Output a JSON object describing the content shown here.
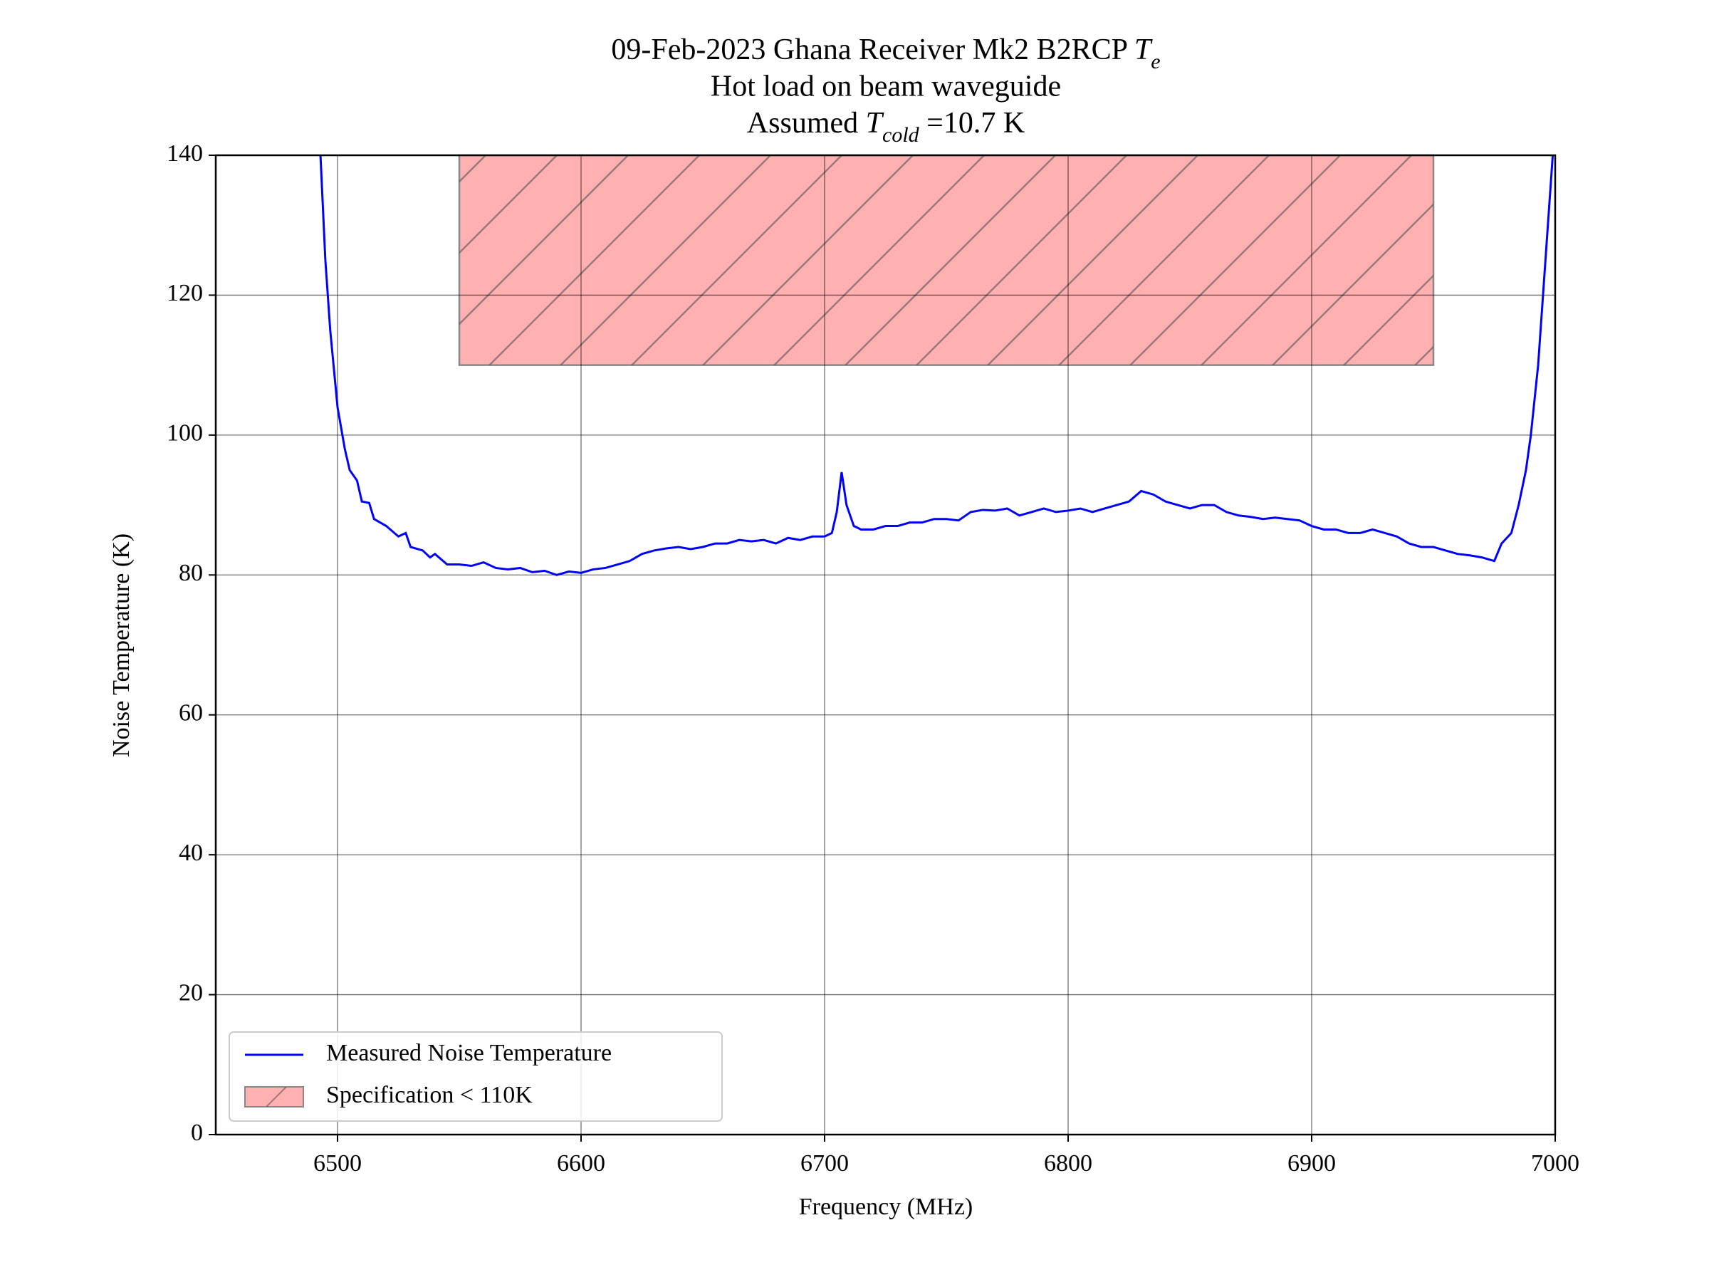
{
  "chart_data": {
    "type": "line",
    "title": [
      [
        "09-Feb-2023 Ghana Receiver Mk2 B2RCP ",
        {
          "text": "T",
          "italic": true
        },
        {
          "text": "e",
          "italic": true,
          "sub": true
        }
      ],
      [
        "Hot load on beam waveguide"
      ],
      [
        "Assumed ",
        {
          "text": "T",
          "italic": true
        },
        {
          "text": "cold",
          "italic": true,
          "sub": true
        },
        " =10.7 K"
      ]
    ],
    "x_label": "Frequency (MHz)",
    "y_label": "Noise Temperature (K)",
    "x": [
      6493,
      6495,
      6497,
      6500,
      6503,
      6505,
      6508,
      6510,
      6513,
      6515,
      6520,
      6525,
      6528,
      6530,
      6535,
      6538,
      6540,
      6545,
      6550,
      6555,
      6560,
      6565,
      6570,
      6575,
      6580,
      6585,
      6590,
      6595,
      6600,
      6605,
      6610,
      6615,
      6620,
      6625,
      6630,
      6635,
      6640,
      6645,
      6650,
      6655,
      6660,
      6665,
      6670,
      6675,
      6680,
      6685,
      6690,
      6695,
      6700,
      6703,
      6705,
      6707,
      6709,
      6712,
      6715,
      6720,
      6725,
      6730,
      6735,
      6740,
      6745,
      6750,
      6755,
      6760,
      6765,
      6770,
      6775,
      6780,
      6785,
      6790,
      6795,
      6800,
      6805,
      6810,
      6815,
      6820,
      6825,
      6830,
      6835,
      6840,
      6845,
      6850,
      6855,
      6860,
      6865,
      6870,
      6875,
      6880,
      6885,
      6890,
      6895,
      6900,
      6905,
      6910,
      6915,
      6920,
      6925,
      6930,
      6935,
      6940,
      6945,
      6950,
      6955,
      6960,
      6965,
      6970,
      6975,
      6978,
      6982,
      6985,
      6988,
      6990,
      6993,
      6996,
      6999
    ],
    "series": [
      {
        "name": "Measured Noise Temperature",
        "color": "#0000ff",
        "values": [
          140,
          125,
          115,
          104,
          98,
          95,
          93.5,
          90.5,
          90.3,
          88,
          87,
          85.5,
          86,
          84,
          83.5,
          82.5,
          83,
          81.5,
          81.5,
          81.3,
          81.8,
          81,
          80.8,
          81,
          80.4,
          80.6,
          80,
          80.5,
          80.3,
          80.8,
          81,
          81.5,
          82,
          83,
          83.5,
          83.8,
          84,
          83.7,
          84,
          84.5,
          84.5,
          85,
          84.8,
          85,
          84.5,
          85.3,
          85,
          85.5,
          85.5,
          86,
          89,
          94.7,
          90,
          87,
          86.5,
          86.5,
          87,
          87,
          87.5,
          87.5,
          88,
          88,
          87.8,
          89,
          89.3,
          89.2,
          89.5,
          88.5,
          89,
          89.5,
          89,
          89.2,
          89.5,
          89,
          89.5,
          90,
          90.5,
          92,
          91.5,
          90.5,
          90,
          89.5,
          90,
          90,
          89,
          88.5,
          88.3,
          88,
          88.2,
          88,
          87.8,
          87,
          86.5,
          86.5,
          86,
          86,
          86.5,
          86,
          85.5,
          84.5,
          84,
          84,
          83.5,
          83,
          82.8,
          82.5,
          82,
          84.5,
          86,
          90,
          95,
          100,
          110,
          125,
          140
        ]
      }
    ],
    "regions": [
      {
        "name": "Specification < 110K",
        "x": [
          6550,
          6950
        ],
        "y": [
          110,
          140
        ],
        "color": "#ffb0b0"
      }
    ],
    "xlim": [
      6450,
      7000
    ],
    "ylim": [
      0,
      140
    ],
    "xticks": [
      6500,
      6600,
      6700,
      6800,
      6900,
      7000
    ],
    "yticks": [
      0,
      20,
      40,
      60,
      80,
      100,
      120,
      140
    ],
    "grid": true,
    "legend": "lower left"
  }
}
